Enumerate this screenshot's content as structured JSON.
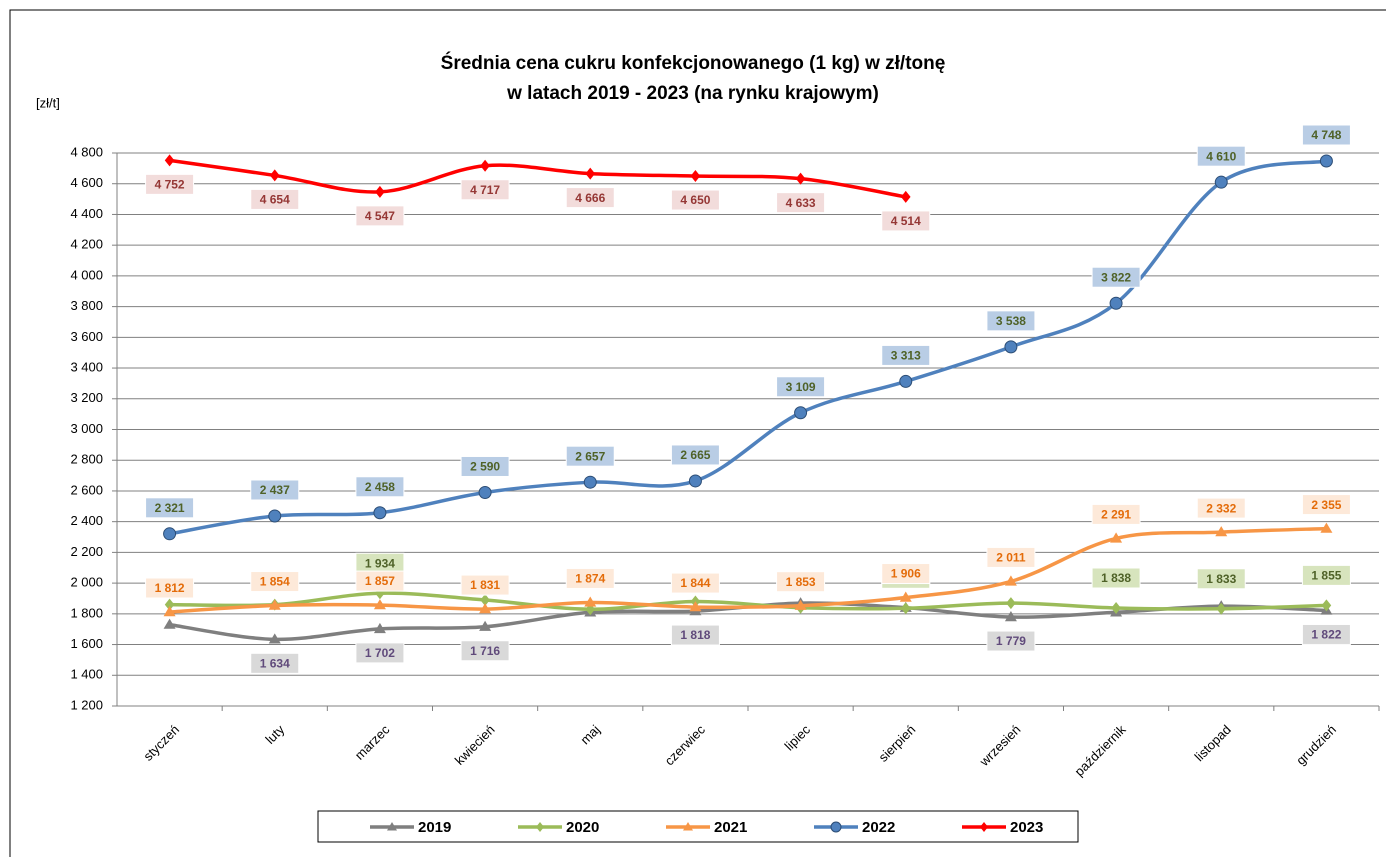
{
  "chart_data": {
    "type": "line",
    "title": "Średnia cena cukru konfekcjonowanego (1 kg) w zł/tonę",
    "subtitle": "w latach 2019 - 2023 (na rynku krajowym)",
    "y_label": "[zł/t]",
    "categories": [
      "styczeń",
      "luty",
      "marzec",
      "kwiecień",
      "maj",
      "czerwiec",
      "lipiec",
      "sierpień",
      "wrzesień",
      "październik",
      "listopad",
      "grudzień"
    ],
    "ylim": [
      1200,
      4800
    ],
    "yticks": [
      {
        "value": 1200,
        "label": "1 200"
      },
      {
        "value": 1400,
        "label": "1 400"
      },
      {
        "value": 1600,
        "label": "1 600"
      },
      {
        "value": 1800,
        "label": "1 800"
      },
      {
        "value": 2000,
        "label": "2 000"
      },
      {
        "value": 2200,
        "label": "2 200"
      },
      {
        "value": 2400,
        "label": "2 400"
      },
      {
        "value": 2600,
        "label": "2 600"
      },
      {
        "value": 2800,
        "label": "2 800"
      },
      {
        "value": 3000,
        "label": "3 000"
      },
      {
        "value": 3200,
        "label": "3 200"
      },
      {
        "value": 3400,
        "label": "3 400"
      },
      {
        "value": 3600,
        "label": "3 600"
      },
      {
        "value": 3800,
        "label": "3 800"
      },
      {
        "value": 4000,
        "label": "4 000"
      },
      {
        "value": 4200,
        "label": "4 200"
      },
      {
        "value": 4400,
        "label": "4 400"
      },
      {
        "value": 4600,
        "label": "4 600"
      },
      {
        "value": 4800,
        "label": "4 800"
      }
    ],
    "grid": true,
    "legend": "bottom",
    "series": [
      {
        "name": "2019",
        "color": "#7f7f7f",
        "marker": "triangle",
        "values": [
          1730,
          1634,
          1702,
          1716,
          1810,
          1818,
          1870,
          1840,
          1779,
          1810,
          1850,
          1822
        ],
        "value_labels": [
          null,
          "1 634",
          "1 702",
          "1 716",
          null,
          "1 818",
          null,
          null,
          "1 779",
          null,
          null,
          "1 822"
        ]
      },
      {
        "name": "2020",
        "color": "#9bbb59",
        "marker": "diamond",
        "values": [
          1860,
          1860,
          1934,
          1890,
          1830,
          1880,
          1840,
          1836,
          1870,
          1838,
          1833,
          1855
        ],
        "value_labels": [
          null,
          null,
          "1 934",
          null,
          null,
          null,
          null,
          "1 836",
          null,
          "1 838",
          "1 833",
          "1 855"
        ]
      },
      {
        "name": "2021",
        "color": "#f79646",
        "marker": "triangle",
        "values": [
          1812,
          1854,
          1857,
          1831,
          1874,
          1844,
          1853,
          1906,
          2011,
          2291,
          2332,
          2355
        ],
        "value_labels": [
          "1 812",
          "1 854",
          "1 857",
          "1 831",
          "1 874",
          "1 844",
          "1 853",
          "1 906",
          "2 011",
          "2 291",
          "2 332",
          "2 355"
        ]
      },
      {
        "name": "2022",
        "color": "#4f81bd",
        "marker": "circle",
        "values": [
          2321,
          2437,
          2458,
          2590,
          2657,
          2665,
          3109,
          3313,
          3538,
          3822,
          4610,
          4748
        ],
        "value_labels": [
          "2 321",
          "2 437",
          "2 458",
          "2 590",
          "2 657",
          "2 665",
          "3 109",
          "3 313",
          "3 538",
          "3 822",
          "4 610",
          "4 748"
        ]
      },
      {
        "name": "2023",
        "color": "#ff0000",
        "marker": "diamond",
        "values": [
          4752,
          4654,
          4547,
          4717,
          4666,
          4650,
          4633,
          4514,
          null,
          null,
          null,
          null
        ],
        "value_labels": [
          "4 752",
          "4 654",
          "4 547",
          "4 717",
          "4 666",
          "4 650",
          "4 633",
          "4 514",
          null,
          null,
          null,
          null
        ]
      }
    ]
  }
}
